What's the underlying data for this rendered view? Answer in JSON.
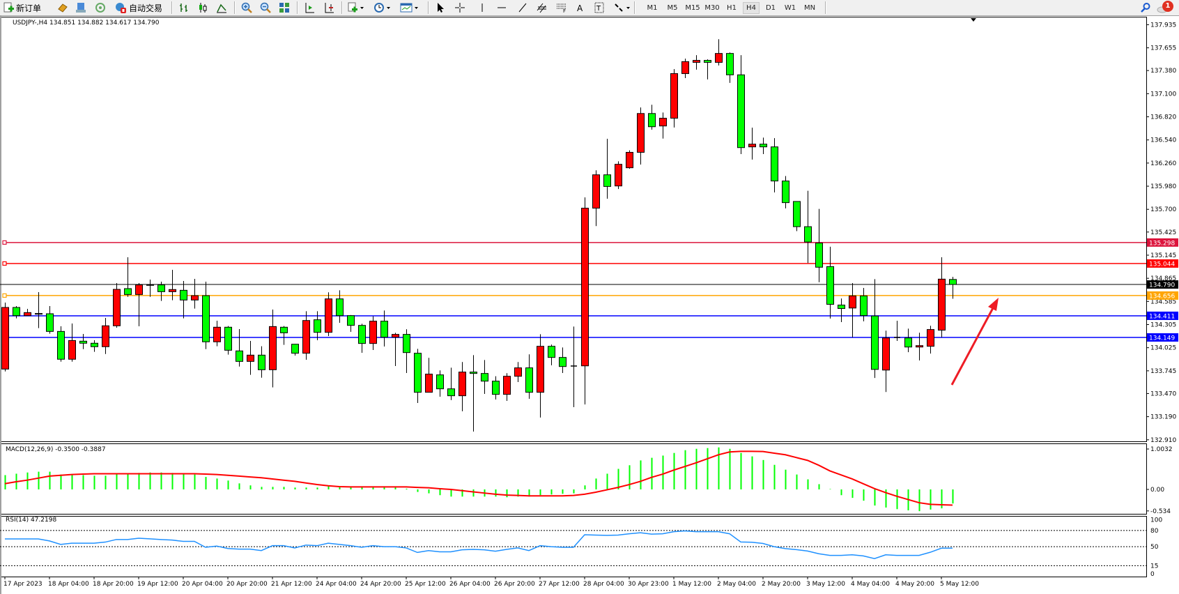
{
  "toolbar": {
    "new_order_label": "新订单",
    "auto_trading_label": "自动交易",
    "timeframes": [
      "M1",
      "M5",
      "M15",
      "M30",
      "H1",
      "H4",
      "D1",
      "W1",
      "MN"
    ],
    "active_timeframe": "H4",
    "notification_count": "1"
  },
  "chart": {
    "header": "USDJPY-,H4  134.851 134.882 134.617 134.790",
    "macd_label": "MACD(12,26,9) -0.3500 -0.3887",
    "rsi_label": "RSI(14) 47.2198",
    "colors": {
      "bull": "#ff0000",
      "bear": "#00ff00",
      "macd_hist": "#00ff00",
      "signal": "#ff0000",
      "rsi": "#1e90ff"
    }
  },
  "chart_data": {
    "type": "candlestick",
    "symbol": "USDJPY-",
    "timeframe": "H4",
    "price_ticks": [
      "137.935",
      "137.655",
      "137.380",
      "137.100",
      "136.820",
      "136.540",
      "136.260",
      "135.980",
      "135.700",
      "135.425",
      "135.145",
      "134.865",
      "134.585",
      "134.305",
      "134.025",
      "133.745",
      "133.470",
      "133.190",
      "132.910"
    ],
    "price_range": [
      132.91,
      137.935
    ],
    "time_labels": [
      "17 Apr 2023",
      "18 Apr 04:00",
      "18 Apr 20:00",
      "19 Apr 12:00",
      "20 Apr 04:00",
      "20 Apr 20:00",
      "21 Apr 12:00",
      "24 Apr 04:00",
      "24 Apr 20:00",
      "25 Apr 12:00",
      "26 Apr 04:00",
      "26 Apr 20:00",
      "27 Apr 12:00",
      "28 Apr 04:00",
      "30 Apr 23:00",
      "1 May 12:00",
      "2 May 04:00",
      "2 May 20:00",
      "3 May 12:00",
      "4 May 04:00",
      "4 May 20:00",
      "5 May 12:00"
    ],
    "candles_ohlc": [
      [
        133.766,
        134.571,
        133.738,
        134.512
      ],
      [
        134.512,
        134.529,
        134.38,
        134.413
      ],
      [
        134.413,
        134.495,
        134.413,
        134.45
      ],
      [
        134.436,
        134.698,
        134.262,
        134.439
      ],
      [
        134.436,
        134.529,
        134.194,
        134.222
      ],
      [
        134.222,
        134.284,
        133.856,
        133.885
      ],
      [
        133.885,
        134.318,
        133.856,
        134.112
      ],
      [
        134.104,
        134.191,
        134.008,
        134.079
      ],
      [
        134.079,
        134.115,
        133.975,
        134.037
      ],
      [
        134.037,
        134.385,
        133.949,
        134.29
      ],
      [
        134.29,
        134.807,
        134.267,
        134.731
      ],
      [
        134.74,
        135.12,
        134.641,
        134.669
      ],
      [
        134.669,
        134.807,
        134.284,
        134.785
      ],
      [
        134.788,
        134.849,
        134.641,
        134.785
      ],
      [
        134.785,
        134.824,
        134.591,
        134.703
      ],
      [
        134.703,
        134.968,
        134.599,
        134.729
      ],
      [
        134.72,
        134.833,
        134.38,
        134.602
      ],
      [
        134.602,
        134.858,
        134.498,
        134.655
      ],
      [
        134.655,
        134.824,
        134.008,
        134.096
      ],
      [
        134.096,
        134.352,
        134.042,
        134.273
      ],
      [
        134.273,
        134.287,
        133.941,
        133.994
      ],
      [
        133.986,
        134.25,
        133.797,
        133.859
      ],
      [
        133.859,
        134.107,
        133.696,
        133.935
      ],
      [
        133.935,
        134.042,
        133.662,
        133.758
      ],
      [
        133.758,
        134.487,
        133.544,
        134.281
      ],
      [
        134.273,
        134.287,
        134.059,
        134.205
      ],
      [
        134.067,
        134.07,
        133.93,
        133.958
      ],
      [
        133.958,
        134.467,
        133.879,
        134.354
      ],
      [
        134.363,
        134.467,
        134.115,
        134.211
      ],
      [
        134.211,
        134.695,
        134.166,
        134.616
      ],
      [
        134.616,
        134.72,
        134.326,
        134.413
      ],
      [
        134.413,
        134.42,
        134.217,
        134.295
      ],
      [
        134.295,
        134.315,
        133.963,
        134.076
      ],
      [
        134.076,
        134.405,
        133.997,
        134.346
      ],
      [
        134.346,
        134.475,
        134.039,
        134.152
      ],
      [
        134.152,
        134.205,
        133.803,
        134.186
      ],
      [
        134.186,
        134.248,
        133.719,
        133.966
      ],
      [
        133.958,
        134.011,
        133.356,
        133.485
      ],
      [
        133.485,
        133.902,
        133.485,
        133.705
      ],
      [
        133.696,
        133.75,
        133.432,
        133.527
      ],
      [
        133.527,
        133.783,
        133.39,
        133.443
      ],
      [
        133.443,
        133.851,
        133.255,
        133.73
      ],
      [
        133.73,
        133.935,
        133.01,
        133.713
      ],
      [
        133.713,
        133.876,
        133.465,
        133.62
      ],
      [
        133.62,
        133.679,
        133.398,
        133.46
      ],
      [
        133.46,
        133.716,
        133.381,
        133.679
      ],
      [
        133.679,
        133.851,
        133.609,
        133.781
      ],
      [
        133.781,
        133.944,
        133.406,
        133.485
      ],
      [
        133.485,
        134.188,
        133.179,
        134.042
      ],
      [
        134.042,
        134.062,
        133.811,
        133.907
      ],
      [
        133.907,
        134.028,
        133.719,
        133.797
      ],
      [
        133.803,
        134.281,
        133.305,
        133.803
      ],
      [
        133.805,
        135.844,
        133.338,
        135.714
      ],
      [
        135.714,
        136.173,
        135.497,
        136.118
      ],
      [
        136.118,
        136.553,
        135.829,
        135.977
      ],
      [
        135.983,
        136.281,
        135.946,
        136.245
      ],
      [
        136.203,
        136.414,
        136.191,
        136.39
      ],
      [
        136.39,
        136.933,
        136.242,
        136.86
      ],
      [
        136.86,
        136.966,
        136.664,
        136.7
      ],
      [
        136.709,
        136.872,
        136.556,
        136.803
      ],
      [
        136.803,
        137.397,
        136.691,
        137.343
      ],
      [
        137.343,
        137.524,
        137.289,
        137.488
      ],
      [
        137.479,
        137.566,
        137.391,
        137.503
      ],
      [
        137.503,
        137.515,
        137.273,
        137.479
      ],
      [
        137.479,
        137.759,
        137.442,
        137.587
      ],
      [
        137.587,
        137.599,
        137.231,
        137.328
      ],
      [
        137.328,
        137.566,
        136.369,
        136.447
      ],
      [
        136.456,
        136.688,
        136.302,
        136.489
      ],
      [
        136.489,
        136.568,
        136.369,
        136.456
      ],
      [
        136.456,
        136.562,
        135.904,
        136.043
      ],
      [
        136.043,
        136.103,
        135.711,
        135.781
      ],
      [
        135.795,
        135.795,
        135.436,
        135.49
      ],
      [
        135.49,
        135.925,
        135.05,
        135.304
      ],
      [
        135.292,
        135.705,
        134.818,
        134.999
      ],
      [
        135.007,
        135.247,
        134.378,
        134.55
      ],
      [
        134.541,
        134.621,
        134.335,
        134.499
      ],
      [
        134.505,
        134.807,
        134.149,
        134.652
      ],
      [
        134.652,
        134.748,
        134.344,
        134.414
      ],
      [
        134.409,
        134.855,
        133.658,
        133.762
      ],
      [
        133.754,
        134.231,
        133.489,
        134.143
      ],
      [
        134.149,
        134.35,
        134.107,
        134.149
      ],
      [
        134.143,
        134.256,
        133.971,
        134.033
      ],
      [
        134.033,
        134.206,
        133.87,
        134.05
      ],
      [
        134.042,
        134.29,
        133.954,
        134.245
      ],
      [
        134.237,
        135.12,
        134.149,
        134.855
      ],
      [
        134.851,
        134.882,
        134.617,
        134.79
      ]
    ],
    "horizontal_lines": [
      {
        "price": 135.298,
        "label": "135.298",
        "color": "#dc143c"
      },
      {
        "price": 135.044,
        "label": "135.044",
        "color": "#ff0000"
      },
      {
        "price": 134.656,
        "label": "134.656",
        "color": "#ffa500"
      },
      {
        "price": 134.411,
        "label": "134.411",
        "color": "#0000ff"
      },
      {
        "price": 134.149,
        "label": "134.149",
        "color": "#0000ff"
      }
    ],
    "current_price": {
      "price": 134.79,
      "label": "134.790",
      "color": "#000000"
    },
    "macd": {
      "ticks": [
        "1.0032",
        "0.00",
        "-0.534"
      ],
      "tick_values": [
        1.0032,
        0,
        -0.534
      ],
      "range": [
        -0.606,
        1.142
      ],
      "histogram": [
        0.355,
        0.39,
        0.42,
        0.44,
        0.44,
        0.37,
        0.37,
        0.355,
        0.34,
        0.34,
        0.39,
        0.39,
        0.41,
        0.42,
        0.42,
        0.41,
        0.39,
        0.37,
        0.31,
        0.27,
        0.22,
        0.15,
        0.1,
        0.063,
        0.063,
        0.063,
        0.046,
        0.046,
        0.046,
        0.1,
        0.08,
        0.063,
        0.063,
        0.063,
        0.063,
        0.063,
        0.017,
        -0.063,
        -0.097,
        -0.143,
        -0.178,
        -0.178,
        -0.178,
        -0.178,
        -0.178,
        -0.195,
        -0.178,
        -0.178,
        -0.143,
        -0.126,
        -0.109,
        -0.097,
        0.1,
        0.27,
        0.39,
        0.51,
        0.6,
        0.72,
        0.785,
        0.84,
        0.905,
        0.974,
        1.008,
        1.026,
        1.043,
        1.008,
        0.905,
        0.82,
        0.73,
        0.61,
        0.49,
        0.37,
        0.25,
        0.13,
        0.01,
        -0.143,
        -0.21,
        -0.28,
        -0.4,
        -0.45,
        -0.49,
        -0.52,
        -0.54,
        -0.5,
        -0.47,
        -0.35
      ],
      "signal": [
        0.143,
        0.19,
        0.23,
        0.28,
        0.33,
        0.35,
        0.37,
        0.38,
        0.39,
        0.39,
        0.39,
        0.39,
        0.39,
        0.39,
        0.39,
        0.39,
        0.39,
        0.39,
        0.38,
        0.37,
        0.35,
        0.33,
        0.31,
        0.29,
        0.26,
        0.23,
        0.2,
        0.16,
        0.12,
        0.09,
        0.07,
        0.063,
        0.063,
        0.063,
        0.063,
        0.063,
        0.063,
        0.05,
        0.04,
        0.017,
        0.0,
        -0.03,
        -0.06,
        -0.09,
        -0.12,
        -0.14,
        -0.15,
        -0.16,
        -0.16,
        -0.16,
        -0.16,
        -0.15,
        -0.12,
        -0.07,
        -0.01,
        0.05,
        0.12,
        0.2,
        0.3,
        0.38,
        0.48,
        0.57,
        0.66,
        0.76,
        0.86,
        0.93,
        0.945,
        0.945,
        0.94,
        0.9,
        0.86,
        0.79,
        0.72,
        0.6,
        0.46,
        0.36,
        0.26,
        0.14,
        0.02,
        -0.08,
        -0.17,
        -0.25,
        -0.33,
        -0.37,
        -0.38,
        -0.3887
      ]
    },
    "rsi": {
      "ticks": [
        "100",
        "80",
        "50",
        "15",
        "0"
      ],
      "levels": [
        80,
        50,
        15
      ],
      "range": [
        0,
        100
      ],
      "values": [
        64.4,
        64.4,
        64.4,
        64.4,
        60.6,
        54.2,
        56.5,
        56.5,
        56.5,
        58.5,
        63.3,
        63.3,
        65.6,
        64.5,
        63.3,
        62.2,
        59.9,
        59.9,
        48.9,
        51.1,
        46.6,
        45.5,
        45.5,
        42.8,
        51.9,
        51.9,
        47.7,
        53,
        51.9,
        56.5,
        54.2,
        51.9,
        48.9,
        51.9,
        50,
        50,
        47.7,
        39.4,
        42.8,
        40.5,
        40.5,
        44.3,
        45,
        44.3,
        41.6,
        45,
        47.7,
        42.8,
        51.9,
        50,
        48.9,
        48.9,
        72,
        71.5,
        70.9,
        71.5,
        73.9,
        75.8,
        73.2,
        73.9,
        77.7,
        79.2,
        77.7,
        77.7,
        77.7,
        73.9,
        58.7,
        58.2,
        56,
        50,
        46.5,
        44.5,
        42,
        37,
        34,
        34,
        35,
        33,
        28,
        35,
        34,
        34,
        34,
        39.7,
        47.3,
        47.2198
      ]
    },
    "annotation": {
      "type": "arrow",
      "color": "#ee1c25",
      "direction": "up-right"
    }
  }
}
